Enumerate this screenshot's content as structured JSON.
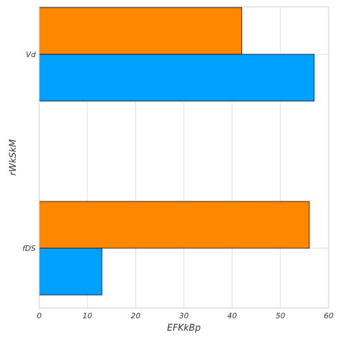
{
  "chart_data": {
    "type": "bar",
    "orientation": "horizontal",
    "xlabel": "EFKkBp",
    "ylabel": "rWkSkM",
    "categories": [
      "Vd",
      "fDS"
    ],
    "series": [
      {
        "values": [
          42,
          56
        ],
        "color": "#FF8800"
      },
      {
        "values": [
          57,
          13
        ],
        "color": "#00A0FF"
      }
    ],
    "xlim": [
      0,
      60
    ],
    "xticks": [
      0,
      10,
      20,
      30,
      40,
      50,
      60
    ],
    "grid": true,
    "legend": "none"
  }
}
